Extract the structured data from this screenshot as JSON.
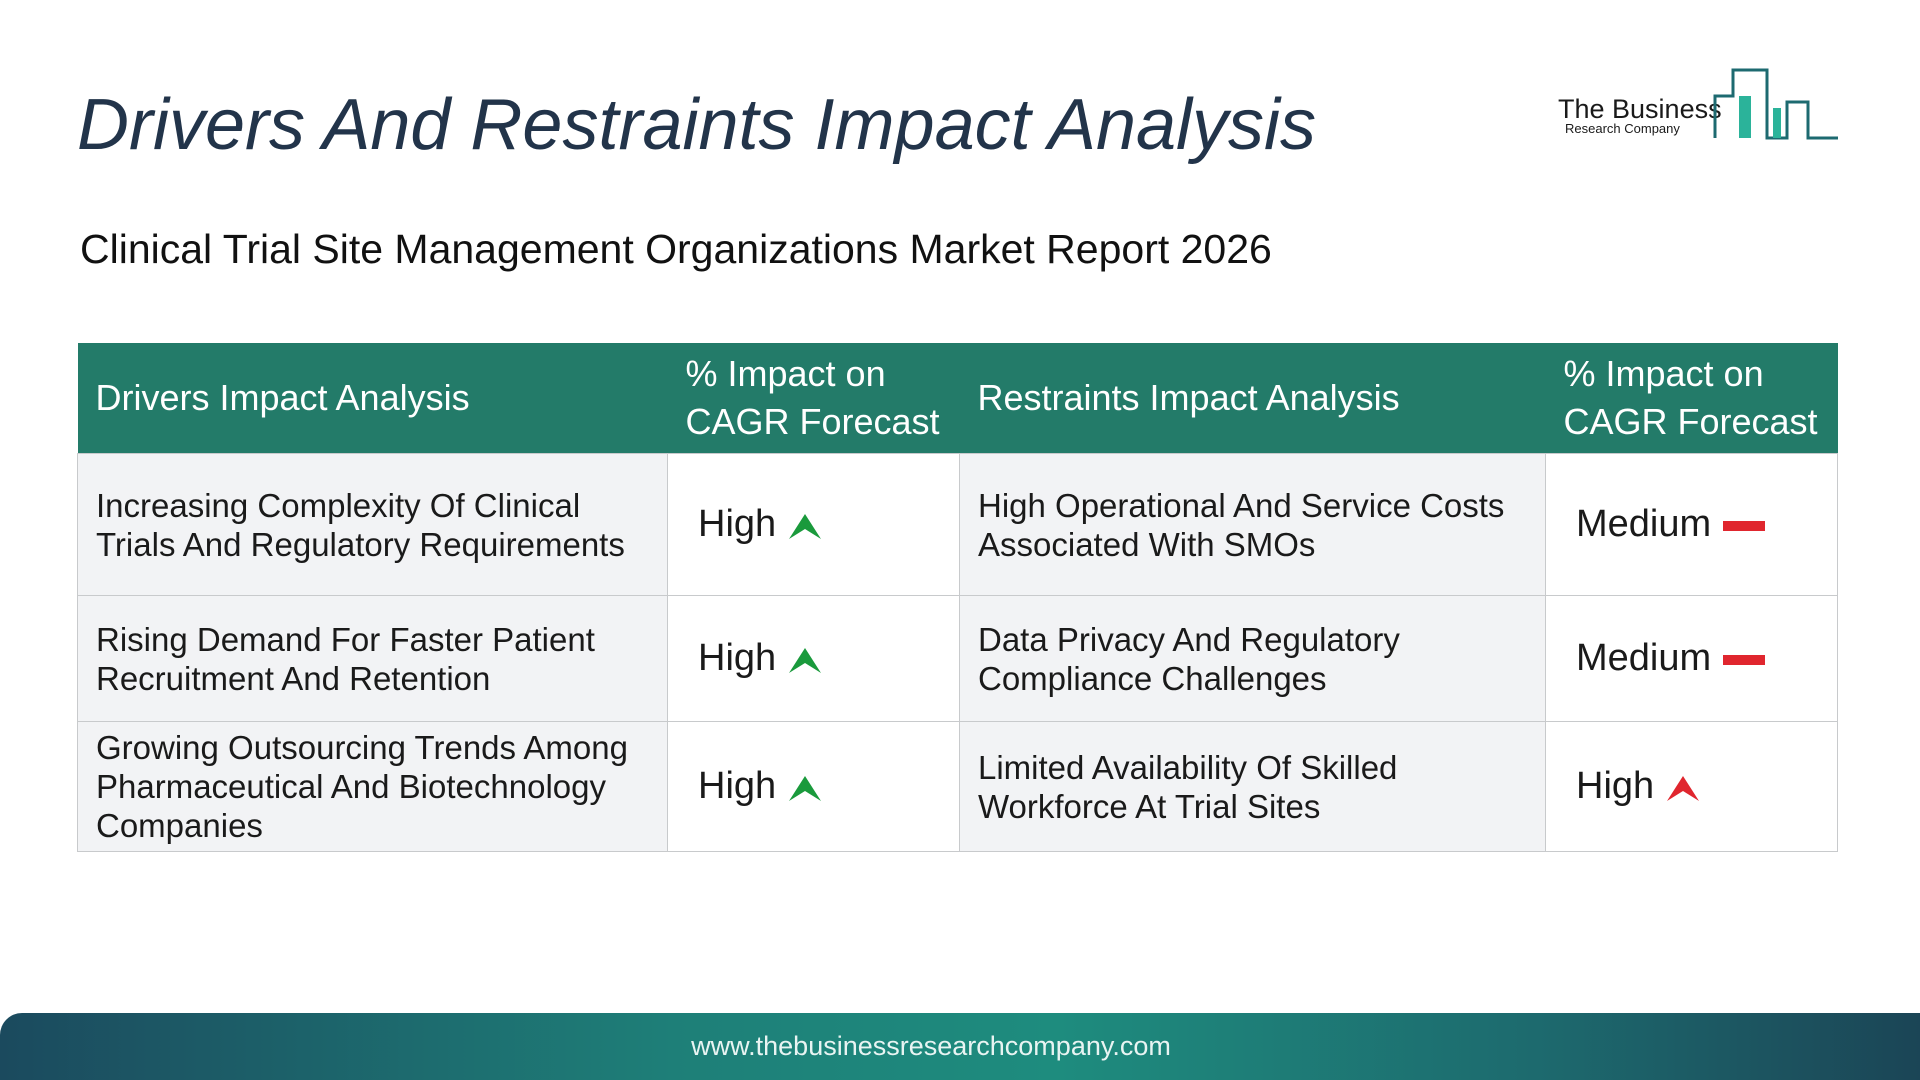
{
  "header": {
    "title": "Drivers And Restraints Impact Analysis",
    "subtitle": "Clinical Trial Site Management Organizations Market Report 2026"
  },
  "logo": {
    "line1": "The Business",
    "line2": "Research Company"
  },
  "table": {
    "columns": [
      "Drivers Impact Analysis",
      "% Impact on CAGR Forecast",
      "Restraints Impact Analysis",
      "% Impact on CAGR Forecast"
    ],
    "rows": [
      [
        "Increasing Complexity Of Clinical Trials And Regulatory Requirements",
        "High",
        "High Operational And Service Costs Associated With SMOs",
        "Medium"
      ],
      [
        "Rising Demand For Faster Patient Recruitment And Retention",
        "High",
        "Data Privacy And Regulatory Compliance Challenges",
        "Medium"
      ],
      [
        "Growing Outsourcing Trends Among Pharmaceutical And Biotechnology Companies",
        "High",
        "Limited Availability Of Skilled Workforce At Trial Sites",
        "High"
      ]
    ]
  },
  "footer": {
    "url": "www.thebusinessresearchcompany.com"
  }
}
